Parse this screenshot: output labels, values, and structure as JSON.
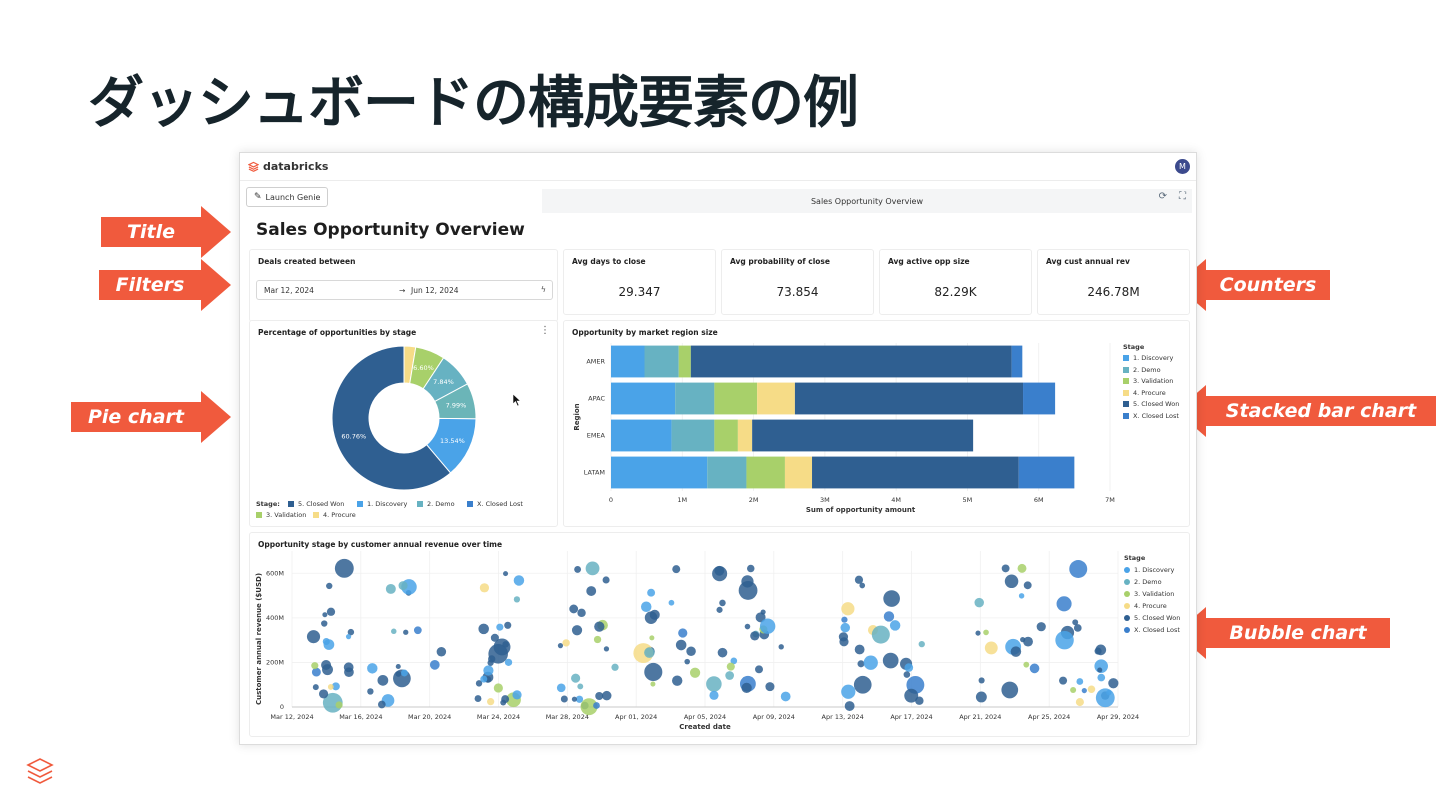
{
  "slide": {
    "title": "ダッシュボードの構成要素の例",
    "callouts": {
      "title": "Title",
      "filters": "Filters",
      "pie": "Pie chart",
      "counters": "Counters",
      "stacked": "Stacked bar chart",
      "bubble": "Bubble chart"
    },
    "accent_color": "#f05a3d"
  },
  "dashboard": {
    "brand": "databricks",
    "avatar": "M",
    "launch_genie": "Launch Genie",
    "tab_title": "Sales Opportunity Overview",
    "title": "Sales Opportunity Overview",
    "filter": {
      "label": "Deals created between",
      "start": "Mar 12, 2024",
      "end": "Jun 12, 2024",
      "arrow": "→"
    },
    "kpis": [
      {
        "label": "Avg days to close",
        "value": "29.347"
      },
      {
        "label": "Avg probability of close",
        "value": "73.854"
      },
      {
        "label": "Avg active opp size",
        "value": "82.29K"
      },
      {
        "label": "Avg cust annual rev",
        "value": "246.78M"
      }
    ],
    "stage_colors": {
      "1. Discovery": "#4aa3e8",
      "2. Demo": "#67b2c2",
      "3. Validation": "#a8d06a",
      "4. Procure": "#f6dc87",
      "5. Closed Won": "#2f5f91",
      "X. Closed Lost": "#3a7fcc"
    }
  },
  "chart_data": [
    {
      "type": "pie",
      "title": "Percentage of opportunities by stage",
      "legend_title": "Stage:",
      "slices": [
        {
          "name": "4. Procure",
          "value": 2.6,
          "label": ""
        },
        {
          "name": "3. Validation",
          "value": 6.6,
          "label": "6.60%"
        },
        {
          "name": "2. Demo",
          "value": 7.84,
          "label": "7.84%"
        },
        {
          "name": "2. Demo",
          "value": 7.99,
          "label": "7.99%"
        },
        {
          "name": "1. Discovery",
          "value": 13.54,
          "label": "13.54%"
        },
        {
          "name": "5. Closed Won",
          "value": 60.76,
          "label": "60.76%"
        }
      ],
      "legend": [
        "5. Closed Won",
        "1. Discovery",
        "2. Demo",
        "X. Closed Lost",
        "3. Validation",
        "4. Procure"
      ]
    },
    {
      "type": "bar",
      "orientation": "horizontal",
      "stacked": true,
      "title": "Opportunity by market region size",
      "xlabel": "Sum of opportunity amount",
      "ylabel": "Region",
      "categories": [
        "AMER",
        "APAC",
        "EMEA",
        "LATAM"
      ],
      "xlim": [
        0,
        7000000
      ],
      "xticks": [
        "0",
        "1M",
        "2M",
        "3M",
        "4M",
        "5M",
        "6M",
        "7M"
      ],
      "legend_title": "Stage",
      "series": [
        {
          "name": "1. Discovery",
          "values": [
            470000,
            900000,
            850000,
            1350000
          ]
        },
        {
          "name": "2. Demo",
          "values": [
            480000,
            550000,
            600000,
            550000
          ]
        },
        {
          "name": "3. Validation",
          "values": [
            170000,
            600000,
            330000,
            540000
          ]
        },
        {
          "name": "4. Procure",
          "values": [
            0,
            530000,
            200000,
            380000
          ]
        },
        {
          "name": "5. Closed Won",
          "values": [
            4500000,
            3200000,
            3100000,
            2900000
          ]
        },
        {
          "name": "X. Closed Lost",
          "values": [
            150000,
            450000,
            0,
            780000
          ]
        }
      ]
    },
    {
      "type": "scatter",
      "subtype": "bubble",
      "title": "Opportunity stage by customer annual revenue over time",
      "xlabel": "Created date",
      "ylabel": "Customer annual revenue ($USD)",
      "xticks": [
        "Mar 12, 2024",
        "Mar 16, 2024",
        "Mar 20, 2024",
        "Mar 24, 2024",
        "Mar 28, 2024",
        "Apr 01, 2024",
        "Apr 05, 2024",
        "Apr 09, 2024",
        "Apr 13, 2024",
        "Apr 17, 2024",
        "Apr 21, 2024",
        "Apr 25, 2024",
        "Apr 29, 2024"
      ],
      "yticks": [
        "0",
        "200M",
        "400M",
        "600M"
      ],
      "ylim": [
        0,
        700000000
      ],
      "legend_title": "Stage",
      "legend": [
        "1. Discovery",
        "2. Demo",
        "3. Validation",
        "4. Procure",
        "5. Closed Won",
        "X. Closed Lost"
      ]
    }
  ]
}
